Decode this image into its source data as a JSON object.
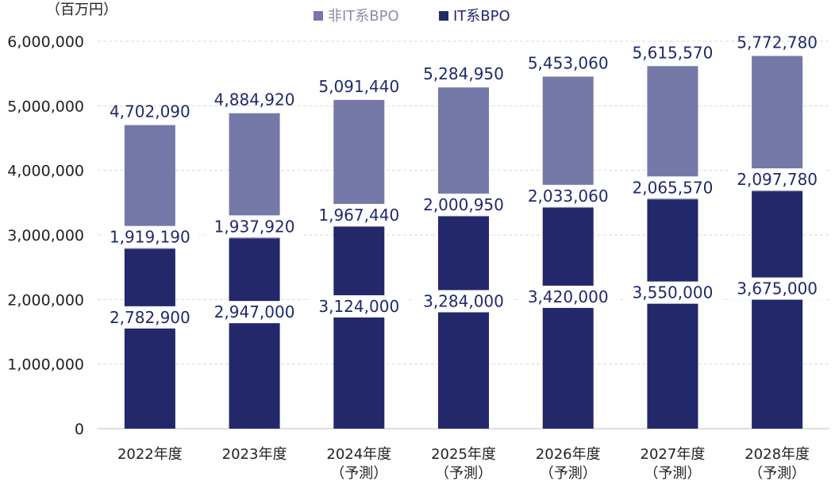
{
  "chart_data": {
    "type": "bar",
    "stacked": true,
    "unit_label": "（百万円）",
    "categories": [
      [
        "2022年度"
      ],
      [
        "2023年度"
      ],
      [
        "2024年度",
        "（予測）"
      ],
      [
        "2025年度",
        "（予測）"
      ],
      [
        "2026年度",
        "（予測）"
      ],
      [
        "2027年度",
        "（予測）"
      ],
      [
        "2028年度",
        "（予測）"
      ]
    ],
    "series": [
      {
        "name": "IT系BPO",
        "color": "#22286a",
        "values": [
          2782900,
          2947000,
          3124000,
          3284000,
          3420000,
          3550000,
          3675000
        ],
        "labels": [
          "2,782,900",
          "2,947,000",
          "3,124,000",
          "3,284,000",
          "3,420,000",
          "3,550,000",
          "3,675,000"
        ]
      },
      {
        "name": "非IT系BPO",
        "color": "#7479a8",
        "values": [
          1919190,
          1937920,
          1967440,
          2000950,
          2033060,
          2065570,
          2097780
        ],
        "labels": [
          "1,919,190",
          "1,937,920",
          "1,967,440",
          "2,000,950",
          "2,033,060",
          "2,065,570",
          "2,097,780"
        ]
      }
    ],
    "totals": [
      4702090,
      4884920,
      5091440,
      5284950,
      5453060,
      5615570,
      5772780
    ],
    "total_labels": [
      "4,702,090",
      "4,884,920",
      "5,091,440",
      "5,284,950",
      "5,453,060",
      "5,615,570",
      "5,772,780"
    ],
    "ylim": [
      0,
      6000000
    ],
    "yticks": [
      0,
      1000000,
      2000000,
      3000000,
      4000000,
      5000000,
      6000000
    ],
    "ytick_labels": [
      "0",
      "1,000,000",
      "2,000,000",
      "3,000,000",
      "4,000,000",
      "5,000,000",
      "6,000,000"
    ],
    "legend": {
      "position": "top-center",
      "items": [
        {
          "label": "非IT系BPO",
          "color": "#7479a8"
        },
        {
          "label": "IT系BPO",
          "color": "#22286a"
        }
      ]
    },
    "grid": true
  }
}
